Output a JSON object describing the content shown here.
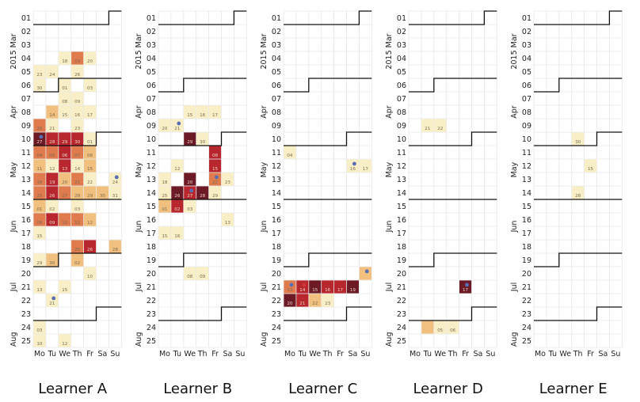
{
  "chart_data": {
    "type": "heatmap",
    "weeks": [
      "01",
      "02",
      "03",
      "04",
      "05",
      "06",
      "07",
      "08",
      "09",
      "10",
      "11",
      "12",
      "13",
      "14",
      "15",
      "16",
      "17",
      "18",
      "19",
      "20",
      "21",
      "22",
      "23",
      "24",
      "25"
    ],
    "weekdays": [
      "Mo",
      "Tu",
      "We",
      "Th",
      "Fr",
      "Sa",
      "Su"
    ],
    "month_labels": [
      {
        "label": "2015 Mar",
        "week_index": 3
      },
      {
        "label": "Apr",
        "week_index": 7.5
      },
      {
        "label": "May",
        "week_index": 11.8
      },
      {
        "label": "Jun",
        "week_index": 16
      },
      {
        "label": "Jul",
        "week_index": 20.5
      },
      {
        "label": "Aug",
        "week_index": 24.4
      }
    ],
    "month_start_weeks": [
      {
        "week_index": 0,
        "weekday": 6
      },
      {
        "week_index": 5,
        "weekday": 2
      },
      {
        "week_index": 9,
        "weekday": 5
      },
      {
        "week_index": 13,
        "weekday": 7
      },
      {
        "week_index": 18,
        "weekday": 2
      },
      {
        "week_index": 22,
        "weekday": 5
      }
    ],
    "color_scale": [
      "#f9efc6",
      "#f1c07e",
      "#e07b4e",
      "#b8262e",
      "#6b1a26",
      "#3f0d1c"
    ],
    "learners": [
      {
        "name": "Learner A",
        "cells": [
          {
            "w": 3,
            "d": 2,
            "v": 1,
            "t": "18"
          },
          {
            "w": 3,
            "d": 3,
            "v": 3,
            "t": "19"
          },
          {
            "w": 3,
            "d": 4,
            "v": 1,
            "t": "20"
          },
          {
            "w": 4,
            "d": 0,
            "v": 1,
            "t": "23"
          },
          {
            "w": 4,
            "d": 1,
            "v": 1,
            "t": "24"
          },
          {
            "w": 4,
            "d": 3,
            "v": 1,
            "t": "26"
          },
          {
            "w": 5,
            "d": 0,
            "v": 1,
            "t": "30"
          },
          {
            "w": 5,
            "d": 2,
            "v": 1,
            "t": "01"
          },
          {
            "w": 5,
            "d": 4,
            "v": 1,
            "t": "03"
          },
          {
            "w": 6,
            "d": 2,
            "v": 1,
            "t": "08"
          },
          {
            "w": 6,
            "d": 3,
            "v": 1,
            "t": "09"
          },
          {
            "w": 7,
            "d": 1,
            "v": 2,
            "t": "14"
          },
          {
            "w": 7,
            "d": 2,
            "v": 1,
            "t": "15"
          },
          {
            "w": 7,
            "d": 3,
            "v": 1,
            "t": "16"
          },
          {
            "w": 7,
            "d": 4,
            "v": 1,
            "t": "17"
          },
          {
            "w": 8,
            "d": 0,
            "v": 3,
            "t": "20"
          },
          {
            "w": 8,
            "d": 1,
            "v": 1,
            "t": "21"
          },
          {
            "w": 8,
            "d": 3,
            "v": 1,
            "t": "23"
          },
          {
            "w": 9,
            "d": 0,
            "v": 5,
            "t": "27"
          },
          {
            "w": 9,
            "d": 1,
            "v": 4,
            "t": "28"
          },
          {
            "w": 9,
            "d": 2,
            "v": 4,
            "t": "29"
          },
          {
            "w": 9,
            "d": 3,
            "v": 4,
            "t": "30"
          },
          {
            "w": 9,
            "d": 4,
            "v": 1,
            "t": "01"
          },
          {
            "w": 10,
            "d": 0,
            "v": 3,
            "t": "04"
          },
          {
            "w": 10,
            "d": 1,
            "v": 3,
            "t": "05"
          },
          {
            "w": 10,
            "d": 2,
            "v": 4,
            "t": "06"
          },
          {
            "w": 10,
            "d": 3,
            "v": 3,
            "t": "07"
          },
          {
            "w": 10,
            "d": 4,
            "v": 2,
            "t": "08"
          },
          {
            "w": 11,
            "d": 0,
            "v": 2,
            "t": "11"
          },
          {
            "w": 11,
            "d": 1,
            "v": 1,
            "t": "12"
          },
          {
            "w": 11,
            "d": 2,
            "v": 4,
            "t": "13"
          },
          {
            "w": 11,
            "d": 3,
            "v": 1,
            "t": "14"
          },
          {
            "w": 11,
            "d": 4,
            "v": 2,
            "t": "15"
          },
          {
            "w": 12,
            "d": 0,
            "v": 3,
            "t": "18"
          },
          {
            "w": 12,
            "d": 1,
            "v": 4,
            "t": "19"
          },
          {
            "w": 12,
            "d": 2,
            "v": 2,
            "t": "20"
          },
          {
            "w": 12,
            "d": 3,
            "v": 3,
            "t": "21"
          },
          {
            "w": 12,
            "d": 4,
            "v": 1,
            "t": "22"
          },
          {
            "w": 12,
            "d": 6,
            "v": 1,
            "t": "24"
          },
          {
            "w": 13,
            "d": 0,
            "v": 3,
            "t": "25"
          },
          {
            "w": 13,
            "d": 1,
            "v": 4,
            "t": "26"
          },
          {
            "w": 13,
            "d": 2,
            "v": 3,
            "t": "27"
          },
          {
            "w": 13,
            "d": 3,
            "v": 2,
            "t": "28"
          },
          {
            "w": 13,
            "d": 4,
            "v": 2,
            "t": "29"
          },
          {
            "w": 13,
            "d": 5,
            "v": 2,
            "t": "30"
          },
          {
            "w": 13,
            "d": 6,
            "v": 1,
            "t": "31"
          },
          {
            "w": 14,
            "d": 0,
            "v": 2,
            "t": "01"
          },
          {
            "w": 14,
            "d": 1,
            "v": 1,
            "t": "02"
          },
          {
            "w": 14,
            "d": 3,
            "v": 1,
            "t": "03"
          },
          {
            "w": 15,
            "d": 0,
            "v": 3,
            "t": "08"
          },
          {
            "w": 15,
            "d": 1,
            "v": 4,
            "t": "09"
          },
          {
            "w": 15,
            "d": 2,
            "v": 3,
            "t": "10"
          },
          {
            "w": 15,
            "d": 3,
            "v": 3,
            "t": "11"
          },
          {
            "w": 15,
            "d": 4,
            "v": 2,
            "t": "12"
          },
          {
            "w": 16,
            "d": 0,
            "v": 1,
            "t": "15"
          },
          {
            "w": 17,
            "d": 3,
            "v": 3,
            "t": "25"
          },
          {
            "w": 17,
            "d": 4,
            "v": 4,
            "t": "26"
          },
          {
            "w": 17,
            "d": 6,
            "v": 2,
            "t": "28"
          },
          {
            "w": 18,
            "d": 0,
            "v": 1,
            "t": "29"
          },
          {
            "w": 18,
            "d": 1,
            "v": 2,
            "t": "30"
          },
          {
            "w": 18,
            "d": 3,
            "v": 2,
            "t": "02"
          },
          {
            "w": 19,
            "d": 4,
            "v": 1,
            "t": "10"
          },
          {
            "w": 20,
            "d": 0,
            "v": 1,
            "t": "13"
          },
          {
            "w": 20,
            "d": 2,
            "v": 1,
            "t": "15"
          },
          {
            "w": 21,
            "d": 1,
            "v": 1,
            "t": "21"
          },
          {
            "w": 23,
            "d": 0,
            "v": 1,
            "t": "03"
          },
          {
            "w": 24,
            "d": 0,
            "v": 1,
            "t": "10"
          },
          {
            "w": 24,
            "d": 2,
            "v": 1,
            "t": "12"
          }
        ],
        "dots": [
          {
            "w": 9,
            "d": 0,
            "color": "#5a6fb3"
          },
          {
            "w": 12,
            "d": 6,
            "color": "#5a6fb3"
          },
          {
            "w": 21,
            "d": 1,
            "color": "#5a6fb3"
          }
        ]
      },
      {
        "name": "Learner B",
        "cells": [
          {
            "w": 7,
            "d": 2,
            "v": 1,
            "t": "15"
          },
          {
            "w": 7,
            "d": 3,
            "v": 1,
            "t": "16"
          },
          {
            "w": 7,
            "d": 4,
            "v": 1,
            "t": "17"
          },
          {
            "w": 8,
            "d": 0,
            "v": 1,
            "t": "20"
          },
          {
            "w": 8,
            "d": 1,
            "v": 1,
            "t": "21"
          },
          {
            "w": 9,
            "d": 2,
            "v": 5,
            "t": "29"
          },
          {
            "w": 9,
            "d": 3,
            "v": 1,
            "t": "30"
          },
          {
            "w": 10,
            "d": 4,
            "v": 4,
            "t": "08"
          },
          {
            "w": 11,
            "d": 1,
            "v": 1,
            "t": "12"
          },
          {
            "w": 11,
            "d": 4,
            "v": 4,
            "t": "15"
          },
          {
            "w": 12,
            "d": 0,
            "v": 1,
            "t": "18"
          },
          {
            "w": 12,
            "d": 2,
            "v": 5,
            "t": "20"
          },
          {
            "w": 12,
            "d": 4,
            "v": 3,
            "t": "22"
          },
          {
            "w": 12,
            "d": 5,
            "v": 1,
            "t": "23"
          },
          {
            "w": 13,
            "d": 0,
            "v": 1,
            "t": "25"
          },
          {
            "w": 13,
            "d": 1,
            "v": 5,
            "t": "26"
          },
          {
            "w": 13,
            "d": 2,
            "v": 4,
            "t": "27"
          },
          {
            "w": 13,
            "d": 3,
            "v": 5,
            "t": "28"
          },
          {
            "w": 13,
            "d": 4,
            "v": 1,
            "t": "29"
          },
          {
            "w": 14,
            "d": 0,
            "v": 2,
            "t": "01"
          },
          {
            "w": 14,
            "d": 1,
            "v": 4,
            "t": "02"
          },
          {
            "w": 14,
            "d": 2,
            "v": 1,
            "t": "03"
          },
          {
            "w": 15,
            "d": 5,
            "v": 1,
            "t": "13"
          },
          {
            "w": 16,
            "d": 0,
            "v": 1,
            "t": "15"
          },
          {
            "w": 16,
            "d": 1,
            "v": 1,
            "t": "16"
          },
          {
            "w": 19,
            "d": 2,
            "v": 1,
            "t": "08"
          },
          {
            "w": 19,
            "d": 3,
            "v": 1,
            "t": "09"
          }
        ],
        "dots": [
          {
            "w": 8,
            "d": 1,
            "color": "#5a6fb3"
          },
          {
            "w": 12,
            "d": 4,
            "color": "#5a6fb3"
          },
          {
            "w": 13,
            "d": 2,
            "color": "#5a6fb3"
          }
        ]
      },
      {
        "name": "Learner C",
        "cells": [
          {
            "w": 10,
            "d": 0,
            "v": 1,
            "t": "04"
          },
          {
            "w": 11,
            "d": 5,
            "v": 1,
            "t": "16"
          },
          {
            "w": 11,
            "d": 6,
            "v": 1,
            "t": "17"
          },
          {
            "w": 19,
            "d": 6,
            "v": 2,
            "t": ""
          },
          {
            "w": 20,
            "d": 0,
            "v": 3,
            "t": "13"
          },
          {
            "w": 20,
            "d": 1,
            "v": 4,
            "t": "14"
          },
          {
            "w": 20,
            "d": 2,
            "v": 5,
            "t": "15"
          },
          {
            "w": 20,
            "d": 3,
            "v": 4,
            "t": "16"
          },
          {
            "w": 20,
            "d": 4,
            "v": 4,
            "t": "17"
          },
          {
            "w": 20,
            "d": 5,
            "v": 5,
            "t": "19"
          },
          {
            "w": 21,
            "d": 0,
            "v": 5,
            "t": "20"
          },
          {
            "w": 21,
            "d": 1,
            "v": 4,
            "t": "21"
          },
          {
            "w": 21,
            "d": 2,
            "v": 2,
            "t": "22"
          },
          {
            "w": 21,
            "d": 3,
            "v": 1,
            "t": "23"
          }
        ],
        "dots": [
          {
            "w": 11,
            "d": 5,
            "color": "#5a6fb3"
          },
          {
            "w": 19,
            "d": 6,
            "color": "#5a6fb3"
          },
          {
            "w": 20,
            "d": 0,
            "color": "#5a6fb3"
          },
          {
            "w": 20,
            "d": 1,
            "color": "#d23a3a"
          }
        ]
      },
      {
        "name": "Learner D",
        "cells": [
          {
            "w": 8,
            "d": 1,
            "v": 1,
            "t": "21"
          },
          {
            "w": 8,
            "d": 2,
            "v": 1,
            "t": "22"
          },
          {
            "w": 20,
            "d": 4,
            "v": 5,
            "t": "17"
          },
          {
            "w": 23,
            "d": 1,
            "v": 2,
            "t": ""
          },
          {
            "w": 23,
            "d": 2,
            "v": 1,
            "t": "05"
          },
          {
            "w": 23,
            "d": 3,
            "v": 1,
            "t": "06"
          }
        ],
        "dots": [
          {
            "w": 20,
            "d": 4,
            "color": "#5a6fb3"
          }
        ]
      },
      {
        "name": "Learner E",
        "cells": [
          {
            "w": 9,
            "d": 3,
            "v": 1,
            "t": "30"
          },
          {
            "w": 11,
            "d": 4,
            "v": 1,
            "t": "15"
          },
          {
            "w": 13,
            "d": 3,
            "v": 1,
            "t": "28"
          }
        ],
        "dots": []
      }
    ]
  }
}
